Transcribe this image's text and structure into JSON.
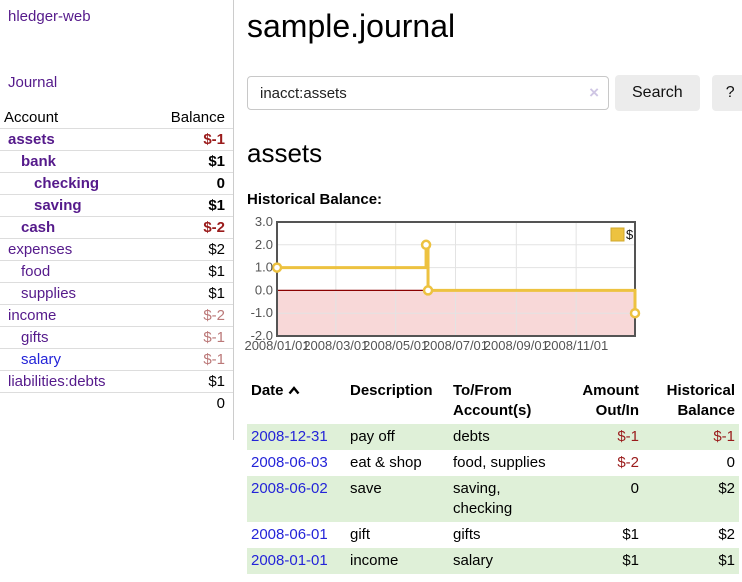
{
  "colors": {
    "purple_link": "#551a8b",
    "blue_link": "#2424d8",
    "negative": "#9a1b1b",
    "dimmed_negative": "#bb7878",
    "row_green": "#dff0d8",
    "series_gold": "#edc240",
    "zero_line": "#8b0000",
    "negative_region": "#f8d8d8",
    "chart_border": "#545454"
  },
  "sidebar": {
    "brand": "hledger-web",
    "journal_link": "Journal",
    "headers": {
      "account": "Account",
      "balance": "Balance"
    },
    "accounts": [
      {
        "name": "assets",
        "indent": 0,
        "bold": true,
        "balance": "$-1",
        "balance_style": "negative"
      },
      {
        "name": "bank",
        "indent": 1,
        "bold": true,
        "balance": "$1",
        "balance_style": "normal"
      },
      {
        "name": "checking",
        "indent": 2,
        "bold": true,
        "balance": "0",
        "balance_style": "normal"
      },
      {
        "name": "saving",
        "indent": 2,
        "bold": true,
        "balance": "$1",
        "balance_style": "normal"
      },
      {
        "name": "cash",
        "indent": 1,
        "bold": true,
        "balance": "$-2",
        "balance_style": "negative"
      },
      {
        "name": "expenses",
        "indent": 0,
        "bold": false,
        "balance": "$2",
        "balance_style": "normal"
      },
      {
        "name": "food",
        "indent": 1,
        "bold": false,
        "balance": "$1",
        "balance_style": "normal"
      },
      {
        "name": "supplies",
        "indent": 1,
        "bold": false,
        "balance": "$1",
        "balance_style": "normal"
      },
      {
        "name": "income",
        "indent": 0,
        "bold": false,
        "balance": "$-2",
        "balance_style": "dimmed"
      },
      {
        "name": "gifts",
        "indent": 1,
        "bold": false,
        "balance": "$-1",
        "balance_style": "dimmed"
      },
      {
        "name": "salary",
        "indent": 1,
        "bold": false,
        "balance": "$-1",
        "balance_style": "dimmed",
        "link_style": "unvisited"
      },
      {
        "name": "liabilities:debts",
        "indent": 0,
        "bold": false,
        "balance": "$1",
        "balance_style": "normal"
      }
    ],
    "total": "0"
  },
  "main": {
    "title": "sample.journal",
    "search": {
      "value": "inacct:assets",
      "clear_icon": "×",
      "button_label": "Search",
      "help_label": "?"
    },
    "account_heading": "assets",
    "chart_label": "Historical Balance:"
  },
  "chart_data": {
    "type": "line",
    "step": true,
    "title": "Historical Balance",
    "ylim": [
      -2,
      3
    ],
    "legend": {
      "label": "$",
      "position": "top-right"
    },
    "series": [
      {
        "name": "$",
        "color": "#edc240",
        "points": [
          {
            "date": "2008-01-01",
            "x": 0.0,
            "y": 1
          },
          {
            "date": "2008-06-01",
            "x": 0.4164,
            "y": 2
          },
          {
            "date": "2008-06-03",
            "x": 0.4219,
            "y": 0
          },
          {
            "date": "2008-12-31",
            "x": 1.0,
            "y": -1
          }
        ]
      }
    ],
    "y_ticks": [
      {
        "v": 3,
        "label": "3.0"
      },
      {
        "v": 2,
        "label": "2.0"
      },
      {
        "v": 1,
        "label": "1.0"
      },
      {
        "v": 0,
        "label": "0.0"
      },
      {
        "v": -1,
        "label": "-1.0"
      },
      {
        "v": -2,
        "label": "-2.0"
      }
    ],
    "x_ticks": [
      {
        "x": 0.0,
        "label": "2008/01/01"
      },
      {
        "x": 0.1644,
        "label": "2008/03/01"
      },
      {
        "x": 0.3315,
        "label": "2008/05/01"
      },
      {
        "x": 0.4986,
        "label": "2008/07/01"
      },
      {
        "x": 0.6685,
        "label": "2008/09/01"
      },
      {
        "x": 0.8356,
        "label": "2008/11/01"
      }
    ],
    "markings": {
      "below_zero_fill": "#f8d8d8",
      "zero_line_color": "#8b0000"
    },
    "grid": true
  },
  "register": {
    "headers": {
      "date": "Date",
      "description": "Description",
      "accounts": "To/From Account(s)",
      "amount": "Amount Out/In",
      "balance": "Historical Balance"
    },
    "rows": [
      {
        "date": "2008-12-31",
        "description": "pay off",
        "accounts": "debts",
        "amount": "$-1",
        "amount_style": "negative",
        "balance": "$-1",
        "balance_style": "negative"
      },
      {
        "date": "2008-06-03",
        "description": "eat & shop",
        "accounts": "food, supplies",
        "amount": "$-2",
        "amount_style": "negative",
        "balance": "0",
        "balance_style": "normal"
      },
      {
        "date": "2008-06-02",
        "description": "save",
        "accounts": "saving, checking",
        "amount": "0",
        "amount_style": "normal",
        "balance": "$2",
        "balance_style": "normal"
      },
      {
        "date": "2008-06-01",
        "description": "gift",
        "accounts": "gifts",
        "amount": "$1",
        "amount_style": "normal",
        "balance": "$2",
        "balance_style": "normal"
      },
      {
        "date": "2008-01-01",
        "description": "income",
        "accounts": "salary",
        "amount": "$1",
        "amount_style": "normal",
        "balance": "$1",
        "balance_style": "normal"
      }
    ]
  }
}
